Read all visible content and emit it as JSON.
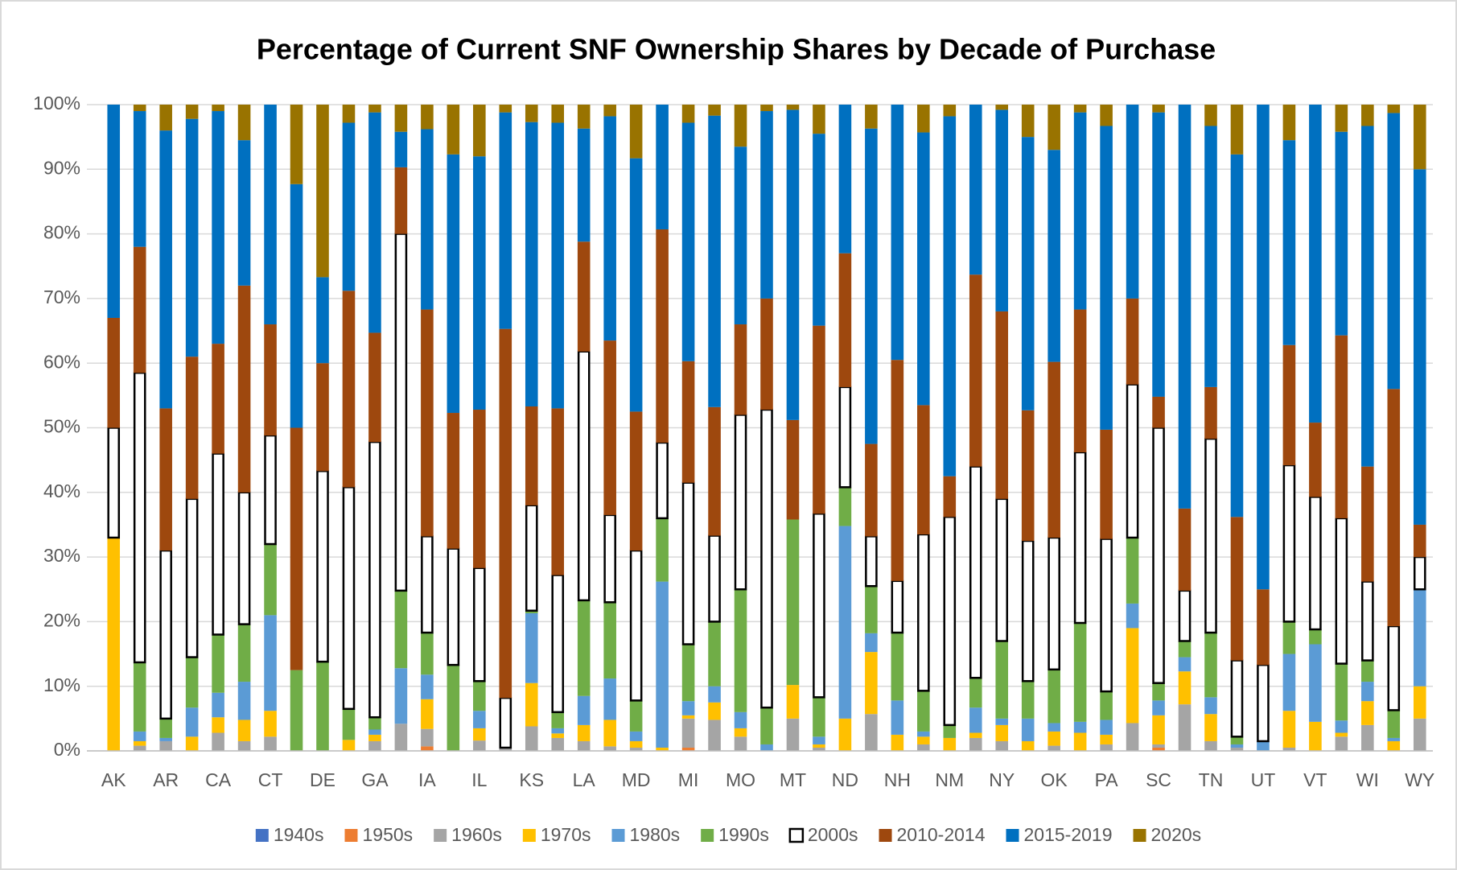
{
  "chart_data": {
    "type": "stacked_bar",
    "title": "Percentage of Current SNF Ownership Shares by Decade of Purchase",
    "categories": [
      "AK",
      null,
      "AR",
      null,
      "CA",
      null,
      "CT",
      null,
      "DE",
      null,
      "GA",
      null,
      "IA",
      null,
      "IL",
      null,
      "KS",
      null,
      "LA",
      null,
      "MD",
      null,
      "MI",
      null,
      "MO",
      null,
      "MT",
      null,
      "ND",
      null,
      "NH",
      null,
      "NM",
      null,
      "NY",
      null,
      "OK",
      null,
      "PA",
      null,
      "SC",
      null,
      "TN",
      null,
      "UT",
      null,
      "VT",
      null,
      "WI",
      null,
      "WY"
    ],
    "ylim": [
      0,
      100
    ],
    "yticks": [
      {
        "value": 0,
        "label": "0%"
      },
      {
        "value": 10,
        "label": "10%"
      },
      {
        "value": 20,
        "label": "20%"
      },
      {
        "value": 30,
        "label": "30%"
      },
      {
        "value": 40,
        "label": "40%"
      },
      {
        "value": 50,
        "label": "50%"
      },
      {
        "value": 60,
        "label": "60%"
      },
      {
        "value": 70,
        "label": "70%"
      },
      {
        "value": 80,
        "label": "80%"
      },
      {
        "value": 90,
        "label": "90%"
      },
      {
        "value": 100,
        "label": "100%"
      }
    ],
    "grid": true,
    "series": [
      {
        "name": "1940s",
        "color": "#4472c4",
        "values": [
          0,
          0,
          0,
          0,
          0,
          0,
          0,
          0,
          0,
          0,
          0,
          0,
          0,
          0,
          0,
          0,
          0,
          0,
          0,
          0,
          0,
          0,
          0,
          0,
          0,
          0,
          0,
          0,
          0,
          0,
          0,
          0,
          0,
          0,
          0,
          0,
          0,
          0,
          0,
          0,
          0,
          0,
          0,
          0,
          0,
          0,
          0,
          0,
          0,
          0,
          0
        ]
      },
      {
        "name": "1950s",
        "color": "#ed7d31",
        "values": [
          0,
          0,
          0,
          0,
          0,
          0,
          0,
          0,
          0,
          0,
          0,
          0,
          0.7,
          0,
          0,
          0,
          0,
          0,
          0,
          0,
          0,
          0,
          0.5,
          0,
          0,
          0,
          0,
          0,
          0,
          0,
          0,
          0,
          0,
          0,
          0,
          0,
          0,
          0,
          0,
          0,
          0.5,
          0,
          0,
          0,
          0,
          0,
          0,
          0,
          0,
          0,
          0
        ]
      },
      {
        "name": "1960s",
        "color": "#a5a5a5",
        "values": [
          0,
          0.8,
          1.5,
          0,
          2.8,
          1.5,
          2.2,
          0,
          0,
          0,
          1.5,
          4.2,
          2.7,
          0,
          1.6,
          0.5,
          3.8,
          2,
          1.5,
          0.7,
          0.5,
          0,
          4.5,
          4.8,
          2.2,
          0,
          5,
          0.5,
          0,
          5.7,
          0,
          1,
          0,
          2,
          1.5,
          0,
          0.8,
          0,
          1,
          4.3,
          0.5,
          7.2,
          1.5,
          0.5,
          0,
          0.5,
          0,
          2.2,
          4,
          0,
          5
        ]
      },
      {
        "name": "1970s",
        "color": "#ffc000",
        "values": [
          33,
          0.7,
          0,
          2.2,
          2.4,
          3.3,
          4,
          0,
          0,
          1.7,
          1,
          0,
          4.6,
          0,
          1.9,
          0,
          6.7,
          0.7,
          2.5,
          4.1,
          1,
          0.5,
          0.5,
          2.7,
          1.3,
          0,
          5.2,
          0.5,
          5,
          9.6,
          2.5,
          1.2,
          2,
          0.8,
          2.5,
          1.5,
          2.2,
          2.8,
          1.5,
          14.7,
          4.5,
          5.1,
          4.2,
          0,
          0,
          5.7,
          4.5,
          0.6,
          3.7,
          1.5,
          5
        ]
      },
      {
        "name": "1980s",
        "color": "#5b9bd5",
        "values": [
          0,
          1.5,
          0.5,
          4.5,
          3.8,
          5.9,
          14.8,
          0,
          0,
          0,
          0.8,
          8.6,
          3.8,
          0,
          2.7,
          0,
          10.8,
          0.8,
          4.5,
          6.4,
          1.5,
          25.7,
          2.2,
          2.5,
          2.5,
          1,
          0,
          1.2,
          29.8,
          2.9,
          5.3,
          0.8,
          0,
          3.9,
          1,
          3.5,
          1.3,
          1.7,
          2.3,
          3.8,
          2.3,
          2.2,
          2.6,
          0.5,
          1.5,
          8.8,
          12,
          1.9,
          3,
          0.5,
          15
        ]
      },
      {
        "name": "1990s",
        "color": "#70ad47",
        "values": [
          0,
          10.7,
          3,
          7.8,
          9,
          8.9,
          11,
          12.5,
          13.8,
          4.8,
          1.9,
          12,
          6.5,
          13.3,
          4.6,
          0,
          0.4,
          2.5,
          14.8,
          11.8,
          4.8,
          9.8,
          8.8,
          10,
          19,
          5.7,
          25.6,
          6.1,
          6,
          7.3,
          10.5,
          6.3,
          2,
          4.6,
          12,
          5.8,
          8.3,
          15.3,
          4.4,
          10.2,
          2.7,
          2.5,
          10,
          1.2,
          0,
          5,
          2.3,
          8.8,
          3.3,
          4.3,
          0
        ]
      },
      {
        "name": "2000s",
        "color": "#ffffff",
        "values": [
          17,
          44.8,
          26,
          24.5,
          28,
          20.4,
          16.8,
          0,
          29.5,
          34.3,
          42.6,
          55.2,
          14.9,
          18,
          17.5,
          7.7,
          16.3,
          21.2,
          38.5,
          13.5,
          23.2,
          11.7,
          25,
          13.3,
          27,
          46.1,
          0,
          28.4,
          15.5,
          7.7,
          8,
          24.2,
          32.2,
          32.7,
          22,
          21.7,
          20.4,
          26.4,
          23.6,
          23.7,
          39.5,
          7.8,
          30,
          11.8,
          11.8,
          24.2,
          20.5,
          22.5,
          12.2,
          13,
          5
        ]
      },
      {
        "name": "2010-2014",
        "color": "#9e480e",
        "values": [
          17,
          19.5,
          22,
          22,
          17,
          32,
          17.2,
          37.5,
          16.7,
          30.4,
          16.9,
          10.3,
          35.1,
          21,
          24.5,
          57.1,
          15.3,
          25.8,
          17,
          27,
          21.5,
          33,
          18.8,
          19.9,
          14,
          17.2,
          15.4,
          29.1,
          20.7,
          14.3,
          34.2,
          20,
          6.3,
          29.7,
          29,
          20.2,
          27.2,
          22.1,
          16.9,
          13.3,
          4.8,
          12.7,
          8,
          22.2,
          11.7,
          18.6,
          11.5,
          28.3,
          17.8,
          36.7,
          5
        ]
      },
      {
        "name": "2015-2019",
        "color": "#0070c0",
        "values": [
          33,
          21,
          43,
          36.8,
          36,
          22.5,
          34,
          37.7,
          13.3,
          26,
          34.1,
          5.5,
          27.9,
          40,
          39.2,
          33.5,
          44,
          44.2,
          17.5,
          34.7,
          39.2,
          19.3,
          36.9,
          45.1,
          27.5,
          29,
          48,
          29.7,
          23,
          48.8,
          39.5,
          42.2,
          55.7,
          26.3,
          31.2,
          42.3,
          32.8,
          30.5,
          47,
          30,
          44,
          62.5,
          40.4,
          56.1,
          75,
          31.7,
          49.2,
          31.5,
          52.7,
          42.7,
          55
        ]
      },
      {
        "name": "2020s",
        "color": "#997300",
        "values": [
          0,
          1,
          4,
          2.2,
          1,
          5.5,
          0,
          12.3,
          26.7,
          2.8,
          1.2,
          4.2,
          3.8,
          7.7,
          8,
          1.2,
          2.7,
          2.8,
          3.7,
          1.8,
          8.3,
          0,
          2.8,
          1.7,
          6.5,
          1,
          0.8,
          4.5,
          0,
          3.7,
          0,
          4.3,
          1.8,
          0,
          0.8,
          5,
          7,
          1.2,
          3.3,
          0,
          1.2,
          0,
          3.3,
          7.7,
          0,
          5.5,
          0,
          4.2,
          3.3,
          1.3,
          10
        ]
      }
    ]
  }
}
